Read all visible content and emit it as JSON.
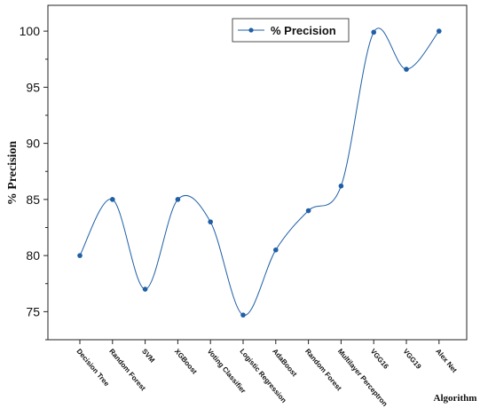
{
  "chart_data": {
    "type": "line",
    "title": "",
    "xlabel": "Algorithm",
    "ylabel": "% Precision",
    "categories": [
      "Decision Tree",
      "Random Forest",
      "SVM",
      "XGBoost",
      "Voting Classifier",
      "Logistic Regression",
      "AdaBoost",
      "Random Forest",
      "Multilayer Perceptron",
      "VGG16",
      "VGG19",
      "Alex Net"
    ],
    "series": [
      {
        "name": "% Precision",
        "values": [
          80.0,
          85.0,
          77.0,
          85.0,
          83.0,
          74.7,
          80.5,
          84.0,
          86.2,
          99.9,
          96.6,
          100.0
        ],
        "color": "#1f5fa6",
        "marker": "circle",
        "smooth": true
      }
    ],
    "ylim": [
      72.5,
      102.3
    ],
    "yticks": [
      75,
      80,
      85,
      90,
      95,
      100
    ],
    "grid": false,
    "legend": "top-center"
  }
}
